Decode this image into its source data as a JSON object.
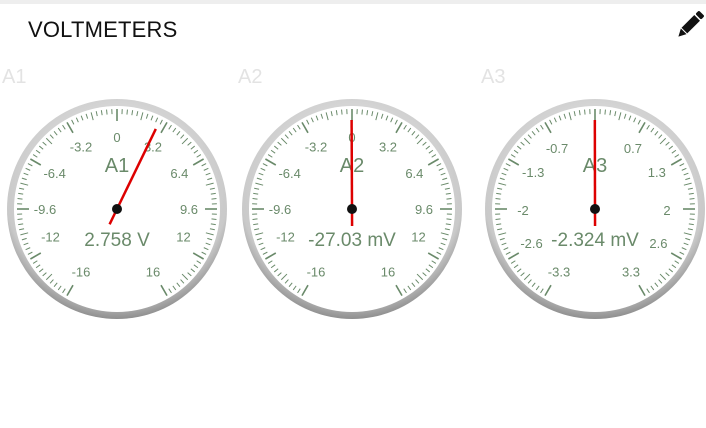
{
  "header": {
    "title": "VOLTMETERS",
    "edit_icon": "pencil-edit-icon"
  },
  "colors": {
    "scale_text": "#6a8a6a",
    "needle": "#dd0000",
    "bezel": "#9a9a9a",
    "label_faint": "#e3e3e3"
  },
  "gauges": [
    {
      "label": "A1",
      "center_label": "A1",
      "reading": "2.758 V",
      "value": 2.758,
      "min": -16,
      "max": 16,
      "ticks": [
        "-16",
        "-12",
        "-9.6",
        "-6.4",
        "-3.2",
        "0",
        "3.2",
        "6.4",
        "9.6",
        "12",
        "16"
      ],
      "tick_values": [
        -16,
        -12,
        -9.6,
        -6.4,
        -3.2,
        0,
        3.2,
        6.4,
        9.6,
        12,
        16
      ]
    },
    {
      "label": "A2",
      "center_label": "A2",
      "reading": "-27.03 mV",
      "value": -0.02703,
      "min": -16,
      "max": 16,
      "ticks": [
        "-16",
        "-12",
        "-9.6",
        "-6.4",
        "-3.2",
        "0",
        "3.2",
        "6.4",
        "9.6",
        "12",
        "16"
      ],
      "tick_values": [
        -16,
        -12,
        -9.6,
        -6.4,
        -3.2,
        0,
        3.2,
        6.4,
        9.6,
        12,
        16
      ]
    },
    {
      "label": "A3",
      "center_label": "A3",
      "reading": "-2.324 mV",
      "value": -0.002324,
      "min": -3.3,
      "max": 3.3,
      "ticks": [
        "-3.3",
        "-2.6",
        "-2",
        "-1.3",
        "-0.7",
        "0.7",
        "1.3",
        "2",
        "2.6",
        "3.3"
      ],
      "tick_values": [
        -3.3,
        -2.6,
        -2,
        -1.3,
        -0.7,
        0.7,
        1.3,
        2,
        2.6,
        3.3
      ]
    }
  ]
}
